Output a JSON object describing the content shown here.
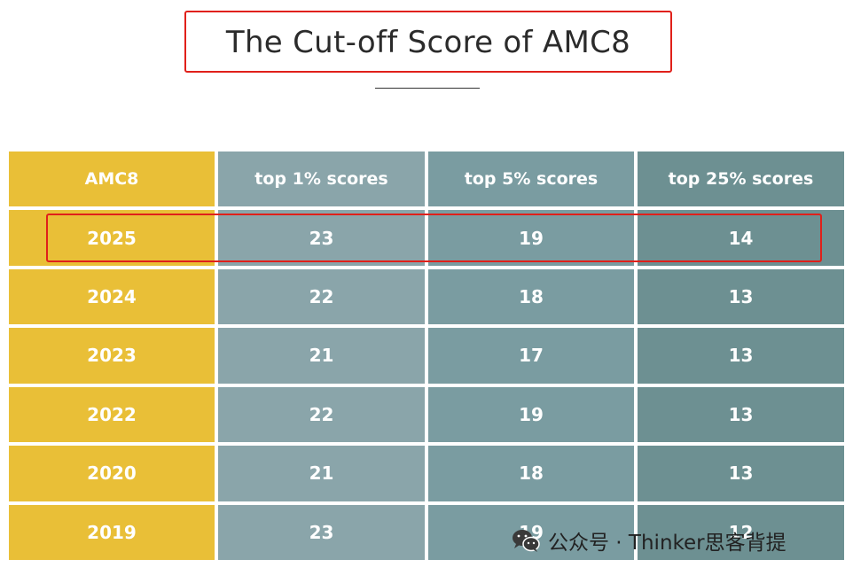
{
  "title": "The Cut-off Score of AMC8",
  "table": {
    "headers": [
      "AMC8",
      "top 1% scores",
      "top 5% scores",
      "top 25% scores"
    ],
    "rows": [
      [
        "2025",
        "23",
        "19",
        "14"
      ],
      [
        "2024",
        "22",
        "18",
        "13"
      ],
      [
        "2023",
        "21",
        "17",
        "13"
      ],
      [
        "2022",
        "22",
        "19",
        "13"
      ],
      [
        "2020",
        "21",
        "18",
        "13"
      ],
      [
        "2019",
        "23",
        "19",
        "12"
      ]
    ]
  },
  "watermark": {
    "text": "公众号 · Thinker思客背提",
    "icon": "wechat-icon"
  },
  "colors": {
    "year_column": "#e9bf37",
    "top1_column": "#8aa5aa",
    "top5_column": "#7a9ca1",
    "top25_column": "#6d9092",
    "highlight_border": "#e0201a"
  }
}
